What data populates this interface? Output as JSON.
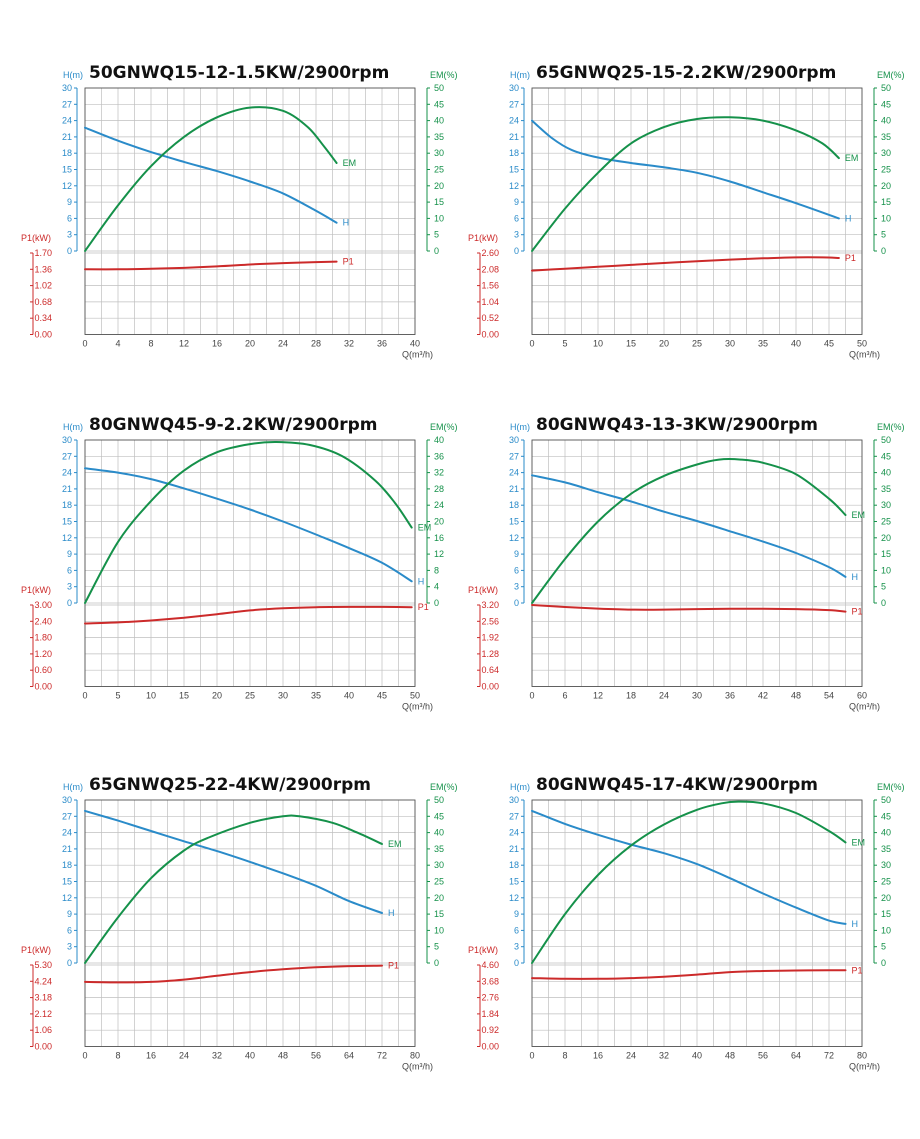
{
  "colors": {
    "head": "#2a8bc9",
    "eff": "#15914a",
    "power": "#cc2a2a",
    "grid": "#bfbfbf",
    "frame": "#555555",
    "text": "#444444"
  },
  "chart_data": [
    {
      "type": "line",
      "title": "50GNWQ15-12-1.5KW/2900rpm",
      "xlabel": "Q(m³/h)",
      "xlim": [
        0,
        40
      ],
      "xticks": [
        "0",
        "4",
        "8",
        "12",
        "16",
        "20",
        "24",
        "28",
        "32",
        "36",
        "40"
      ],
      "head_axis": {
        "label": "H(m)",
        "ticks": [
          "0",
          "3",
          "6",
          "9",
          "12",
          "15",
          "18",
          "21",
          "24",
          "27",
          "30"
        ],
        "range": [
          0,
          30
        ]
      },
      "eff_axis": {
        "label": "EM(%)",
        "ticks": [
          "0",
          "5",
          "10",
          "15",
          "20",
          "25",
          "30",
          "35",
          "40",
          "45",
          "50"
        ],
        "range": [
          0,
          50
        ]
      },
      "power_axis": {
        "label": "P1(kW)",
        "ticks": [
          "0.00",
          "0.34",
          "0.68",
          "1.02",
          "1.36",
          "1.70"
        ],
        "range": [
          0,
          1.7
        ]
      },
      "series": [
        {
          "name": "H",
          "axis": "head",
          "x": [
            0,
            4,
            8,
            12,
            16,
            20,
            24,
            28,
            30.5
          ],
          "values": [
            22.7,
            20.3,
            18.2,
            16.4,
            14.7,
            12.8,
            10.6,
            7.4,
            5.2
          ]
        },
        {
          "name": "EM",
          "axis": "eff",
          "x": [
            0,
            4,
            8,
            12,
            16,
            20,
            24,
            27,
            29,
            30.5
          ],
          "values": [
            0,
            14,
            26,
            35,
            41,
            44,
            43,
            38,
            32,
            27
          ]
        },
        {
          "name": "P1",
          "axis": "power",
          "x": [
            0,
            4,
            8,
            12,
            16,
            20,
            24,
            28,
            30.5
          ],
          "values": [
            1.36,
            1.36,
            1.37,
            1.39,
            1.42,
            1.46,
            1.49,
            1.51,
            1.52
          ]
        }
      ]
    },
    {
      "type": "line",
      "title": "65GNWQ25-15-2.2KW/2900rpm",
      "xlabel": "Q(m³/h)",
      "xlim": [
        0,
        50
      ],
      "xticks": [
        "0",
        "5",
        "10",
        "15",
        "20",
        "25",
        "30",
        "35",
        "40",
        "45",
        "50"
      ],
      "head_axis": {
        "label": "H(m)",
        "ticks": [
          "0",
          "3",
          "6",
          "9",
          "12",
          "15",
          "18",
          "21",
          "24",
          "27",
          "30"
        ],
        "range": [
          0,
          30
        ]
      },
      "eff_axis": {
        "label": "EM(%)",
        "ticks": [
          "0",
          "5",
          "10",
          "15",
          "20",
          "25",
          "30",
          "35",
          "40",
          "45",
          "50"
        ],
        "range": [
          0,
          50
        ]
      },
      "power_axis": {
        "label": "P1(kW)",
        "ticks": [
          "0.00",
          "0.52",
          "1.04",
          "1.56",
          "2.08",
          "2.60"
        ],
        "range": [
          0,
          2.6
        ]
      },
      "series": [
        {
          "name": "H",
          "axis": "head",
          "x": [
            0,
            3,
            6,
            10,
            15,
            20,
            25,
            30,
            35,
            40,
            46.5
          ],
          "values": [
            24,
            20.8,
            18.6,
            17.2,
            16.2,
            15.4,
            14.4,
            12.8,
            10.8,
            8.8,
            6.0
          ]
        },
        {
          "name": "EM",
          "axis": "eff",
          "x": [
            0,
            5,
            10,
            15,
            20,
            25,
            30,
            35,
            40,
            44,
            46.5
          ],
          "values": [
            0,
            13,
            24,
            33,
            38,
            40.5,
            41,
            40,
            37,
            33,
            28.5
          ]
        },
        {
          "name": "P1",
          "axis": "power",
          "x": [
            0,
            5,
            10,
            15,
            20,
            25,
            30,
            35,
            40,
            44,
            46.5
          ],
          "values": [
            2.04,
            2.1,
            2.16,
            2.22,
            2.28,
            2.34,
            2.39,
            2.43,
            2.46,
            2.46,
            2.44
          ]
        }
      ]
    },
    {
      "type": "line",
      "title": "80GNWQ45-9-2.2KW/2900rpm",
      "xlabel": "Q(m³/h)",
      "xlim": [
        0,
        50
      ],
      "xticks": [
        "0",
        "5",
        "10",
        "15",
        "20",
        "25",
        "30",
        "35",
        "40",
        "45",
        "50"
      ],
      "head_axis": {
        "label": "H(m)",
        "ticks": [
          "0",
          "3",
          "6",
          "9",
          "12",
          "15",
          "18",
          "21",
          "24",
          "27",
          "30"
        ],
        "range": [
          0,
          30
        ]
      },
      "eff_axis": {
        "label": "EM(%)",
        "ticks": [
          "0",
          "4",
          "8",
          "12",
          "16",
          "20",
          "24",
          "28",
          "32",
          "36",
          "40"
        ],
        "range": [
          0,
          40
        ]
      },
      "power_axis": {
        "label": "P1(kW)",
        "ticks": [
          "0.00",
          "0.60",
          "1.20",
          "1.80",
          "2.40",
          "3.00"
        ],
        "range": [
          0,
          3
        ]
      },
      "series": [
        {
          "name": "H",
          "axis": "head",
          "x": [
            0,
            5,
            10,
            15,
            20,
            25,
            30,
            35,
            40,
            45,
            49.5
          ],
          "values": [
            24.8,
            24,
            22.8,
            21.1,
            19.2,
            17.2,
            15,
            12.6,
            10.1,
            7.4,
            4.0
          ]
        },
        {
          "name": "EM",
          "axis": "eff",
          "x": [
            0,
            5,
            10,
            15,
            20,
            25,
            29,
            34,
            39,
            44,
            47,
            49.5
          ],
          "values": [
            0,
            15,
            25,
            32.5,
            37,
            39,
            39.5,
            38.8,
            36,
            30,
            24.5,
            18.5
          ]
        },
        {
          "name": "P1",
          "axis": "power",
          "x": [
            0,
            5,
            10,
            15,
            20,
            25,
            30,
            35,
            40,
            45,
            49.5
          ],
          "values": [
            2.32,
            2.36,
            2.43,
            2.53,
            2.66,
            2.8,
            2.88,
            2.92,
            2.93,
            2.93,
            2.92
          ]
        }
      ]
    },
    {
      "type": "line",
      "title": "80GNWQ43-13-3KW/2900rpm",
      "xlabel": "Q(m³/h)",
      "xlim": [
        0,
        60
      ],
      "xticks": [
        "0",
        "6",
        "12",
        "18",
        "24",
        "30",
        "36",
        "42",
        "48",
        "54",
        "60"
      ],
      "head_axis": {
        "label": "H(m)",
        "ticks": [
          "0",
          "3",
          "6",
          "9",
          "12",
          "15",
          "18",
          "21",
          "24",
          "27",
          "30"
        ],
        "range": [
          0,
          30
        ]
      },
      "eff_axis": {
        "label": "EM(%)",
        "ticks": [
          "0",
          "5",
          "10",
          "15",
          "20",
          "25",
          "30",
          "35",
          "40",
          "45",
          "50"
        ],
        "range": [
          0,
          50
        ]
      },
      "power_axis": {
        "label": "P1(kW)",
        "ticks": [
          "0.00",
          "0.64",
          "1.28",
          "1.92",
          "2.56",
          "3.20"
        ],
        "range": [
          0,
          3.2
        ]
      },
      "series": [
        {
          "name": "H",
          "axis": "head",
          "x": [
            0,
            6,
            12,
            18,
            24,
            30,
            36,
            42,
            48,
            54,
            57
          ],
          "values": [
            23.5,
            22.2,
            20.4,
            18.7,
            16.8,
            15.1,
            13.2,
            11.3,
            9.2,
            6.6,
            4.8
          ]
        },
        {
          "name": "EM",
          "axis": "eff",
          "x": [
            0,
            6,
            12,
            18,
            24,
            30,
            34,
            38,
            42,
            48,
            54,
            57
          ],
          "values": [
            0,
            13.5,
            25,
            33.5,
            39,
            42.5,
            44,
            44,
            43,
            39.5,
            32,
            27
          ]
        },
        {
          "name": "P1",
          "axis": "power",
          "x": [
            0,
            6,
            12,
            18,
            24,
            30,
            36,
            42,
            48,
            54,
            57
          ],
          "values": [
            3.2,
            3.12,
            3.06,
            3.02,
            3.02,
            3.04,
            3.05,
            3.05,
            3.04,
            3.0,
            2.94
          ]
        }
      ]
    },
    {
      "type": "line",
      "title": "65GNWQ25-22-4KW/2900rpm",
      "xlabel": "Q(m³/h)",
      "xlim": [
        0,
        80
      ],
      "xticks": [
        "0",
        "8",
        "16",
        "24",
        "32",
        "40",
        "48",
        "56",
        "64",
        "72",
        "80"
      ],
      "head_axis": {
        "label": "H(m)",
        "ticks": [
          "0",
          "3",
          "6",
          "9",
          "12",
          "15",
          "18",
          "21",
          "24",
          "27",
          "30"
        ],
        "range": [
          0,
          30
        ]
      },
      "eff_axis": {
        "label": "EM(%)",
        "ticks": [
          "0",
          "5",
          "10",
          "15",
          "20",
          "25",
          "30",
          "35",
          "40",
          "45",
          "50"
        ],
        "range": [
          0,
          50
        ]
      },
      "power_axis": {
        "label": "P1(kW)",
        "ticks": [
          "0.00",
          "1.06",
          "2.12",
          "3.18",
          "4.24",
          "5.30"
        ],
        "range": [
          0,
          5.3
        ]
      },
      "series": [
        {
          "name": "H",
          "axis": "head",
          "x": [
            0,
            8,
            16,
            24,
            32,
            40,
            48,
            56,
            64,
            72
          ],
          "values": [
            28,
            26.2,
            24.3,
            22.4,
            20.6,
            18.6,
            16.5,
            14.2,
            11.4,
            9.2
          ]
        },
        {
          "name": "EM",
          "axis": "eff",
          "x": [
            0,
            8,
            16,
            24,
            30,
            40,
            48,
            52,
            60,
            66,
            72
          ],
          "values": [
            0,
            14,
            26,
            34.5,
            38.5,
            43,
            45,
            45,
            43,
            40,
            36.5
          ]
        },
        {
          "name": "P1",
          "axis": "power",
          "x": [
            0,
            8,
            16,
            24,
            32,
            40,
            48,
            56,
            64,
            72
          ],
          "values": [
            4.2,
            4.17,
            4.2,
            4.35,
            4.6,
            4.84,
            5.02,
            5.15,
            5.23,
            5.26
          ]
        }
      ]
    },
    {
      "type": "line",
      "title": "80GNWQ45-17-4KW/2900rpm",
      "xlabel": "Q(m³/h)",
      "xlim": [
        0,
        80
      ],
      "xticks": [
        "0",
        "8",
        "16",
        "24",
        "32",
        "40",
        "48",
        "56",
        "64",
        "72",
        "80"
      ],
      "head_axis": {
        "label": "H(m)",
        "ticks": [
          "0",
          "3",
          "6",
          "9",
          "12",
          "15",
          "18",
          "21",
          "24",
          "27",
          "30"
        ],
        "range": [
          0,
          30
        ]
      },
      "eff_axis": {
        "label": "EM(%)",
        "ticks": [
          "0",
          "5",
          "10",
          "15",
          "20",
          "25",
          "30",
          "35",
          "40",
          "45",
          "50"
        ],
        "range": [
          0,
          50
        ]
      },
      "power_axis": {
        "label": "P1(kW)",
        "ticks": [
          "0.00",
          "0.92",
          "1.84",
          "2.76",
          "3.68",
          "4.60"
        ],
        "range": [
          0,
          4.6
        ]
      },
      "series": [
        {
          "name": "H",
          "axis": "head",
          "x": [
            0,
            8,
            16,
            24,
            32,
            40,
            48,
            56,
            64,
            72,
            76
          ],
          "values": [
            28,
            25.6,
            23.6,
            21.8,
            20.2,
            18.2,
            15.6,
            12.8,
            10.2,
            7.8,
            7.2
          ]
        },
        {
          "name": "EM",
          "axis": "eff",
          "x": [
            0,
            8,
            16,
            24,
            32,
            40,
            46,
            50,
            56,
            64,
            72,
            76
          ],
          "values": [
            0,
            15,
            27,
            36,
            42.5,
            47,
            49,
            49.5,
            49,
            46,
            40.5,
            37
          ]
        },
        {
          "name": "P1",
          "axis": "power",
          "x": [
            0,
            8,
            16,
            24,
            32,
            40,
            48,
            56,
            64,
            72,
            76
          ],
          "values": [
            3.86,
            3.82,
            3.82,
            3.86,
            3.94,
            4.06,
            4.2,
            4.26,
            4.29,
            4.3,
            4.3
          ]
        }
      ]
    }
  ]
}
